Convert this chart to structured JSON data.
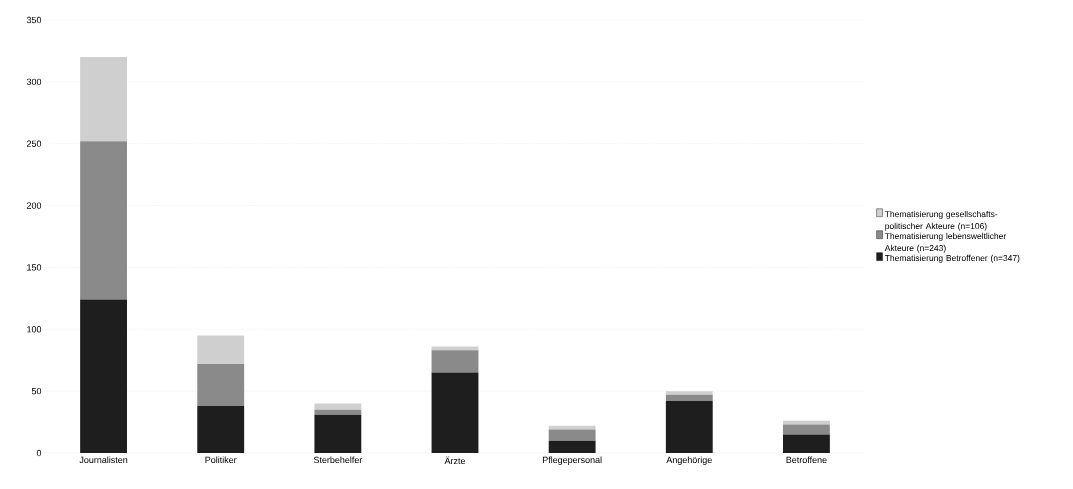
{
  "chart_data": {
    "type": "bar",
    "stacked": true,
    "categories": [
      "Journalisten",
      "Politiker",
      "Sterbehelfer",
      "Ärzte",
      "Pflegepersonal",
      "Angehörige",
      "Betroffene"
    ],
    "series": [
      {
        "name": "Thematisierung Betroffener (n=347)",
        "color": "#1e1e1e",
        "values": [
          124,
          38,
          31,
          65,
          10,
          42,
          15
        ]
      },
      {
        "name": "Thematisierung lebensweltlicher Akteure (n=243)",
        "color": "#8a8a8a",
        "values": [
          128,
          34,
          4,
          18,
          9,
          5,
          8
        ]
      },
      {
        "name": "Thematisierung gesellschafts-politischer Akteure (n=106)",
        "color": "#cfcfcf",
        "values": [
          68,
          23,
          5,
          3,
          3,
          3,
          3
        ]
      }
    ],
    "ylim": [
      0,
      350
    ],
    "yticks": [
      0,
      50,
      100,
      150,
      200,
      250,
      300,
      350
    ],
    "grid": "y",
    "legend": "right"
  }
}
